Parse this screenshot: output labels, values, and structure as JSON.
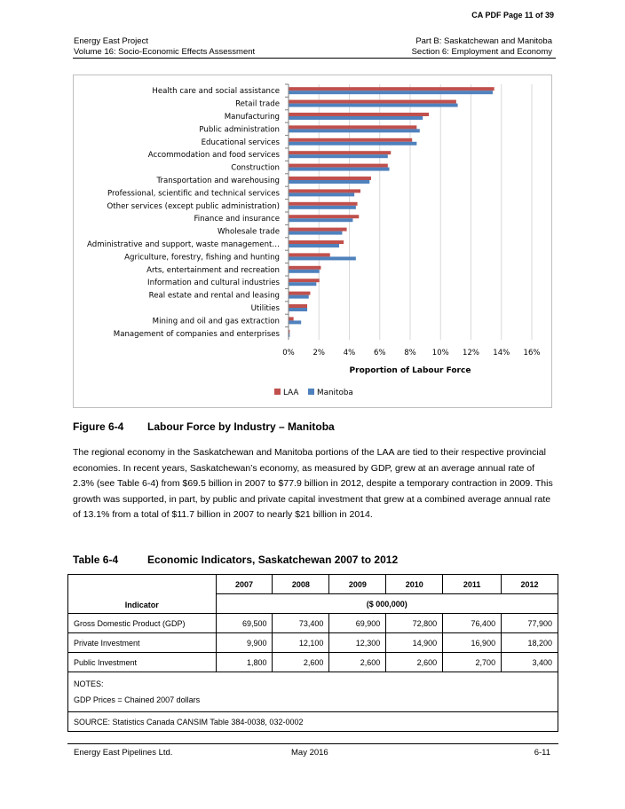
{
  "page_label": "CA PDF Page 11 of 39",
  "header": {
    "left_line1": "Energy East Project",
    "left_line2": "Volume 16: Socio-Economic Effects Assessment",
    "right_line1": "Part B: Saskatchewan and Manitoba",
    "right_line2": "Section 6: Employment and Economy"
  },
  "chart_data": {
    "type": "bar",
    "orientation": "horizontal",
    "categories": [
      "Health care and social assistance",
      "Retail trade",
      "Manufacturing",
      "Public administration",
      "Educational services",
      "Accommodation and food services",
      "Construction",
      "Transportation and warehousing",
      "Professional, scientific and technical services",
      "Other services (except public administration)",
      "Finance and insurance",
      "Wholesale trade",
      "Administrative and support, waste management…",
      "Agriculture, forestry, fishing and hunting",
      "Arts, entertainment and recreation",
      "Information and cultural industries",
      "Real estate and rental and leasing",
      "Utilities",
      "Mining and oil and gas extraction",
      "Management of companies and enterprises"
    ],
    "series": [
      {
        "name": "LAA",
        "color": "#c0504d",
        "values": [
          13.5,
          11.0,
          9.2,
          8.4,
          8.1,
          6.7,
          6.5,
          5.4,
          4.7,
          4.5,
          4.6,
          3.8,
          3.6,
          2.7,
          2.1,
          2.0,
          1.4,
          1.2,
          0.3,
          0.05
        ]
      },
      {
        "name": "Manitoba",
        "color": "#4f81bd",
        "values": [
          13.4,
          11.1,
          8.8,
          8.6,
          8.4,
          6.5,
          6.6,
          5.3,
          4.3,
          4.4,
          4.2,
          3.5,
          3.3,
          4.4,
          2.0,
          1.8,
          1.3,
          1.2,
          0.8,
          0.05
        ]
      }
    ],
    "x_ticks": [
      "0%",
      "2%",
      "4%",
      "6%",
      "8%",
      "10%",
      "12%",
      "14%",
      "16%"
    ],
    "xlim": [
      0,
      16
    ],
    "xlabel": "Proportion of Labour Force",
    "legend_position": "bottom",
    "grid": true
  },
  "figure_caption": {
    "number": "Figure 6-4",
    "title": "Labour Force by Industry – Manitoba"
  },
  "paragraph": "The regional economy in the Saskatchewan and Manitoba portions of the LAA are tied to their respective provincial economies. In recent years, Saskatchewan’s economy, as measured by GDP, grew at an average annual rate of 2.3% (see Table 6-4) from $69.5 billion in 2007 to $77.9 billion in 2012, despite a temporary contraction in 2009. This growth was supported, in part, by public and private capital investment that grew at a combined average annual rate of 13.1% from a total of $11.7 billion in 2007 to nearly $21 billion in 2014.",
  "table_caption": {
    "number": "Table 6-4",
    "title": "Economic Indicators, Saskatchewan 2007 to 2012"
  },
  "table": {
    "indicator_header": "Indicator",
    "years": [
      "2007",
      "2008",
      "2009",
      "2010",
      "2011",
      "2012"
    ],
    "unit": "($ 000,000)",
    "rows": [
      {
        "label": "Gross Domestic Product (GDP)",
        "values": [
          "69,500",
          "73,400",
          "69,900",
          "72,800",
          "76,400",
          "77,900"
        ]
      },
      {
        "label": "Private Investment",
        "values": [
          "9,900",
          "12,100",
          "12,300",
          "14,900",
          "16,900",
          "18,200"
        ]
      },
      {
        "label": "Public Investment",
        "values": [
          "1,800",
          "2,600",
          "2,600",
          "2,600",
          "2,700",
          "3,400"
        ]
      }
    ],
    "notes_label": "NOTES:",
    "notes_line": "GDP Prices = Chained 2007 dollars",
    "source": "SOURCE: Statistics Canada CANSIM Table 384-0038, 032-0002"
  },
  "footer": {
    "left": "Energy East Pipelines Ltd.",
    "center": "May 2016",
    "right": "6-11"
  }
}
